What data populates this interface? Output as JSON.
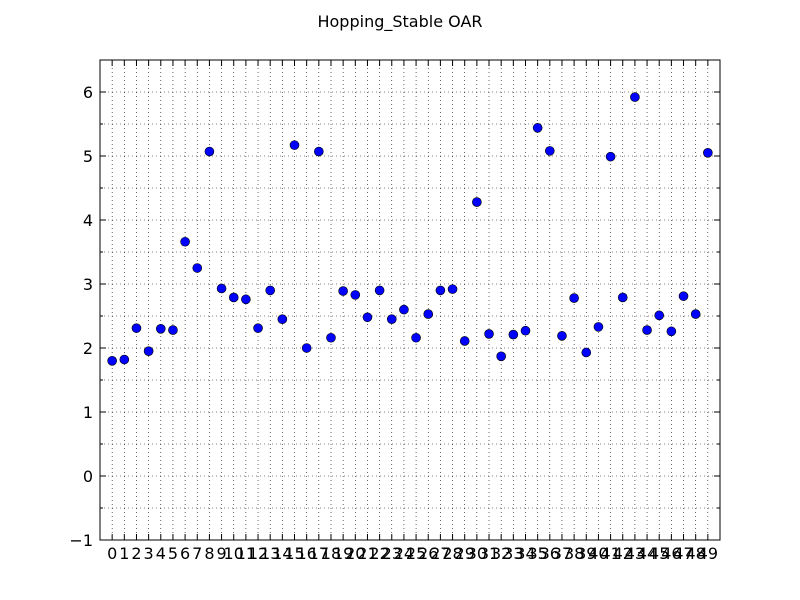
{
  "chart_data": {
    "type": "scatter",
    "title": "Hopping_Stable OAR",
    "xlabel": "",
    "ylabel": "",
    "x_ticks": [
      "0",
      "1",
      "2",
      "3",
      "4",
      "5",
      "6",
      "7",
      "8",
      "9",
      "10",
      "11",
      "12",
      "13",
      "14",
      "15",
      "16",
      "17",
      "18",
      "19",
      "20",
      "21",
      "22",
      "23",
      "24",
      "25",
      "26",
      "27",
      "28",
      "29",
      "30",
      "31",
      "32",
      "33",
      "34",
      "35",
      "36",
      "37",
      "38",
      "39",
      "40",
      "41",
      "42",
      "43",
      "44",
      "45",
      "46",
      "47",
      "48",
      "49"
    ],
    "y_ticks": [
      "−1",
      "0",
      "1",
      "2",
      "3",
      "4",
      "5",
      "6"
    ],
    "xlim": [
      -1,
      50
    ],
    "ylim": [
      -1,
      6.5
    ],
    "grid": "dotted major and minor",
    "marker_color": "#0000ff",
    "x": [
      0,
      1,
      2,
      3,
      4,
      5,
      6,
      7,
      8,
      9,
      10,
      11,
      12,
      13,
      14,
      15,
      16,
      17,
      18,
      19,
      20,
      21,
      22,
      23,
      24,
      25,
      26,
      27,
      28,
      29,
      30,
      31,
      32,
      33,
      34,
      35,
      36,
      37,
      38,
      39,
      40,
      41,
      42,
      43,
      44,
      45,
      46,
      47,
      48,
      49
    ],
    "values": [
      1.8,
      1.82,
      2.31,
      1.95,
      2.3,
      2.28,
      3.66,
      3.25,
      5.07,
      2.93,
      2.79,
      2.76,
      2.31,
      2.9,
      2.45,
      5.17,
      2.0,
      5.07,
      2.16,
      2.89,
      2.83,
      2.48,
      2.9,
      2.45,
      2.6,
      2.16,
      2.53,
      2.9,
      2.92,
      2.11,
      4.28,
      2.22,
      1.87,
      2.21,
      2.27,
      5.44,
      5.08,
      2.19,
      2.78,
      1.93,
      2.33,
      4.99,
      2.79,
      5.92,
      2.28,
      2.51,
      2.26,
      2.81,
      2.53,
      5.05
    ]
  }
}
